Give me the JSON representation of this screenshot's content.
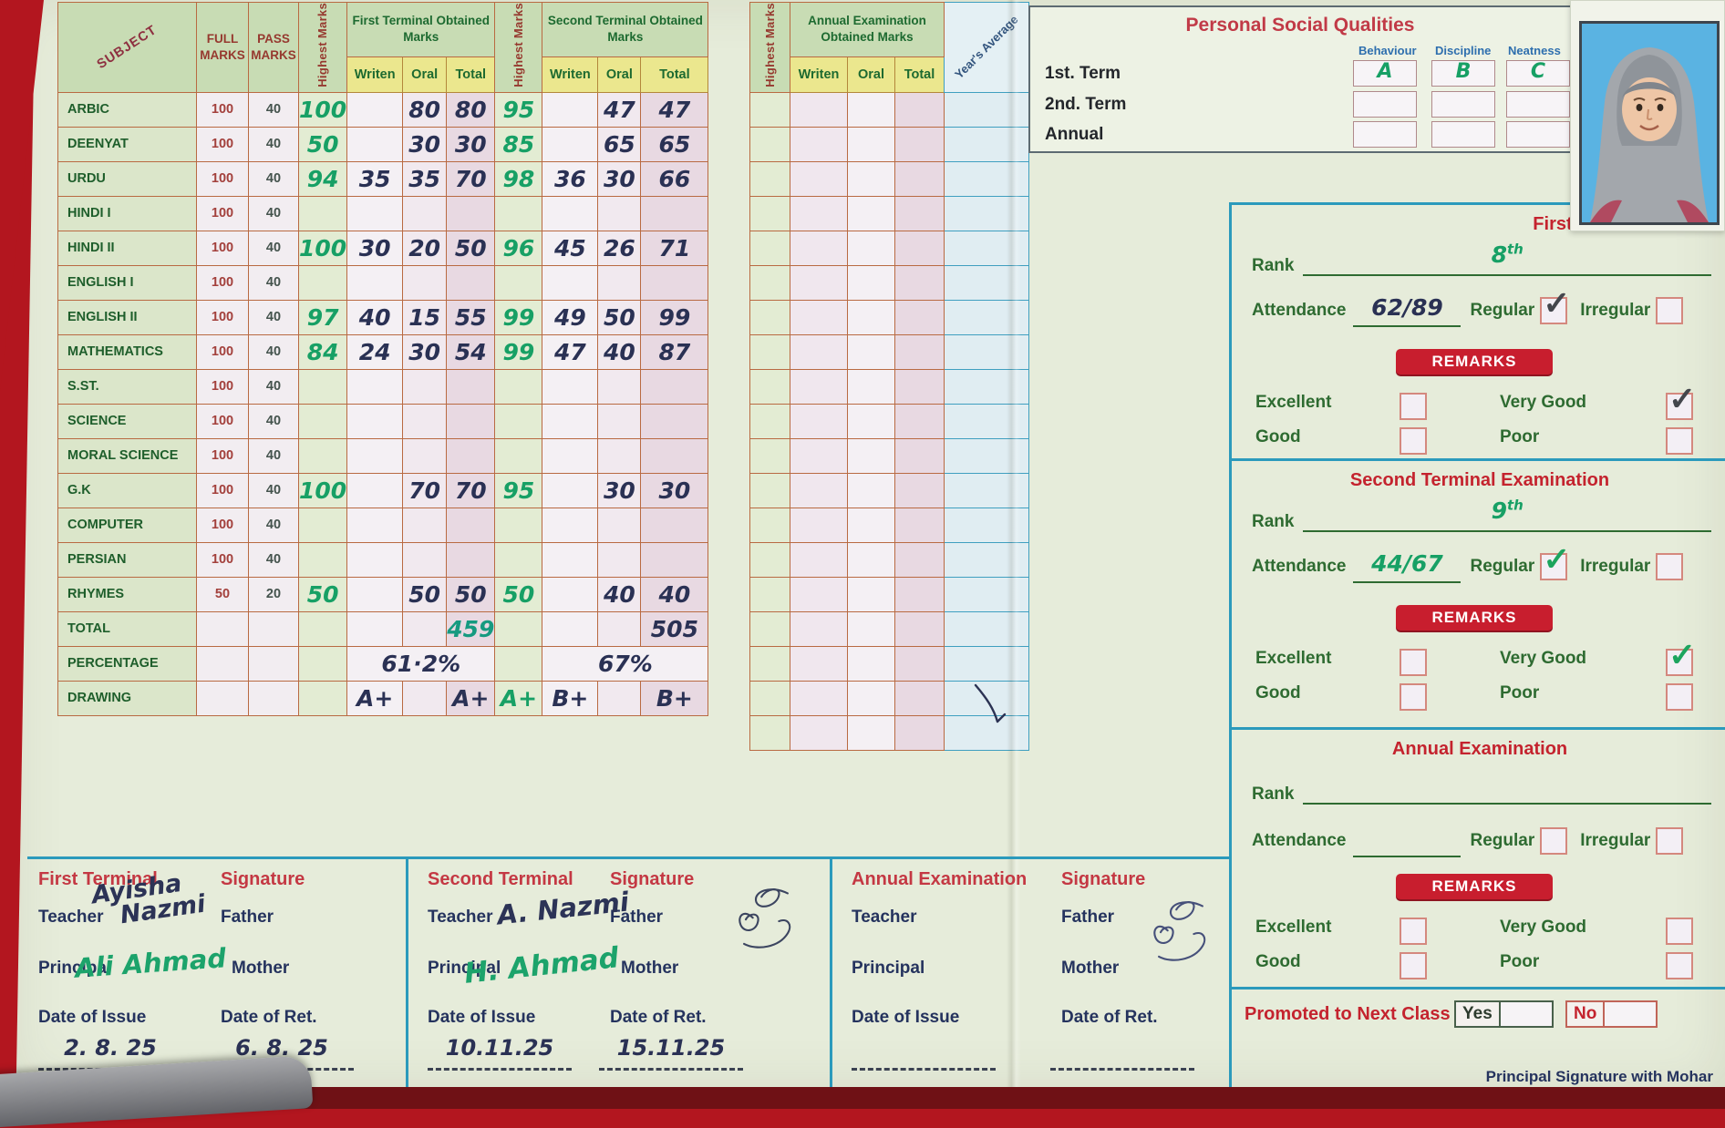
{
  "colors": {
    "card": "#e6ecda",
    "table_border": "#b96a42",
    "teal": "#2b9abc",
    "remarks_red": "#c81e2e",
    "ink_green": "#17a065",
    "ink_navy": "#2a3154",
    "header_green": "#c8dcb4",
    "yellow_cell": "#ebe78e"
  },
  "marks_table": {
    "corner": "SUBJECT",
    "full_header": "FULL MARKS",
    "pass_header": "PASS MARKS",
    "highest_header": "Highest Marks",
    "t1_group": "First Terminal Obtained Marks",
    "t2_group": "Second Terminal Obtained Marks",
    "written": "Writen",
    "oral": "Oral",
    "total": "Total",
    "rows": [
      {
        "subject": "ARBIC",
        "full": "100",
        "pass": "40",
        "t1": [
          "100",
          "",
          "80",
          "80"
        ],
        "t2": [
          "95",
          "",
          "47",
          "47"
        ]
      },
      {
        "subject": "DEENYAT",
        "full": "100",
        "pass": "40",
        "t1": [
          "50",
          "",
          "30",
          "30"
        ],
        "t2": [
          "85",
          "",
          "65",
          "65"
        ]
      },
      {
        "subject": "URDU",
        "full": "100",
        "pass": "40",
        "t1": [
          "94",
          "35",
          "35",
          "70"
        ],
        "t2": [
          "98",
          "36",
          "30",
          "66"
        ]
      },
      {
        "subject": "HINDI I",
        "full": "100",
        "pass": "40",
        "t1": [
          "",
          "",
          "",
          ""
        ],
        "t2": [
          "",
          "",
          "",
          ""
        ]
      },
      {
        "subject": "HINDI II",
        "full": "100",
        "pass": "40",
        "t1": [
          "100",
          "30",
          "20",
          "50"
        ],
        "t2": [
          "96",
          "45",
          "26",
          "71"
        ]
      },
      {
        "subject": "ENGLISH I",
        "full": "100",
        "pass": "40",
        "t1": [
          "",
          "",
          "",
          ""
        ],
        "t2": [
          "",
          "",
          "",
          ""
        ]
      },
      {
        "subject": "ENGLISH II",
        "full": "100",
        "pass": "40",
        "t1": [
          "97",
          "40",
          "15",
          "55"
        ],
        "t2": [
          "99",
          "49",
          "50",
          "99"
        ]
      },
      {
        "subject": "MATHEMATICS",
        "full": "100",
        "pass": "40",
        "t1": [
          "84",
          "24",
          "30",
          "54"
        ],
        "t2": [
          "99",
          "47",
          "40",
          "87"
        ]
      },
      {
        "subject": "S.ST.",
        "full": "100",
        "pass": "40",
        "t1": [
          "",
          "",
          "",
          ""
        ],
        "t2": [
          "",
          "",
          "",
          ""
        ]
      },
      {
        "subject": "SCIENCE",
        "full": "100",
        "pass": "40",
        "t1": [
          "",
          "",
          "",
          ""
        ],
        "t2": [
          "",
          "",
          "",
          ""
        ]
      },
      {
        "subject": "MORAL SCIENCE",
        "full": "100",
        "pass": "40",
        "t1": [
          "",
          "",
          "",
          ""
        ],
        "t2": [
          "",
          "",
          "",
          ""
        ]
      },
      {
        "subject": "G.K",
        "full": "100",
        "pass": "40",
        "t1": [
          "100",
          "",
          "70",
          "70"
        ],
        "t2": [
          "95",
          "",
          "30",
          "30"
        ]
      },
      {
        "subject": "COMPUTER",
        "full": "100",
        "pass": "40",
        "t1": [
          "",
          "",
          "",
          ""
        ],
        "t2": [
          "",
          "",
          "",
          ""
        ]
      },
      {
        "subject": "PERSIAN",
        "full": "100",
        "pass": "40",
        "t1": [
          "",
          "",
          "",
          ""
        ],
        "t2": [
          "",
          "",
          "",
          ""
        ]
      },
      {
        "subject": "RHYMES",
        "full": "50",
        "pass": "20",
        "t1": [
          "50",
          "",
          "50",
          "50"
        ],
        "t2": [
          "50",
          "",
          "40",
          "40"
        ]
      }
    ],
    "total_row": {
      "label": "TOTAL",
      "t1_total": "459",
      "t2_total": "505"
    },
    "percentage_row": {
      "label": "PERCENTAGE",
      "t1": "61·2%",
      "t2": "67%"
    },
    "drawing_row": {
      "label": "DRAWING",
      "t1_written": "A+",
      "t1_total": "A+",
      "t2_highest": "A+",
      "t2_written": "B+",
      "t2_total": "B+"
    }
  },
  "annual_table": {
    "highest_header": "Highest Marks",
    "group": "Annual Examination Obtained Marks",
    "written": "Writen",
    "oral": "Oral",
    "total": "Total",
    "years_average": "Year's Average",
    "blank_rows": 19
  },
  "psq": {
    "title": "Personal Social Qualities",
    "columns": [
      "Behaviour",
      "Discipline",
      "Neatness"
    ],
    "rows": [
      {
        "label": "1st. Term",
        "values": [
          "A",
          "B",
          "C"
        ]
      },
      {
        "label": "2nd. Term",
        "values": [
          "",
          "",
          ""
        ]
      },
      {
        "label": "Annual",
        "values": [
          "",
          "",
          ""
        ]
      }
    ]
  },
  "labels": {
    "rank": "Rank",
    "attendance": "Attendance",
    "regular": "Regular",
    "irregular": "Irregular",
    "remarks": "REMARKS",
    "excellent": "Excellent",
    "very_good": "Very Good",
    "good": "Good",
    "poor": "Poor"
  },
  "term_sections": [
    {
      "title": "First Terminal Exam",
      "rank": "8",
      "rank_sup": "th",
      "attendance": "62/89",
      "regular_checked": true,
      "irregular_checked": false,
      "excellent": false,
      "very_good": true,
      "good": false,
      "poor": false
    },
    {
      "title": "Second Terminal Examination",
      "rank": "9",
      "rank_sup": "th",
      "attendance": "44/67",
      "regular_checked": true,
      "irregular_checked": false,
      "excellent": false,
      "very_good": true,
      "good": false,
      "poor": false
    },
    {
      "title": "Annual Examination",
      "rank": "",
      "rank_sup": "",
      "attendance": "",
      "regular_checked": false,
      "irregular_checked": false,
      "excellent": false,
      "very_good": false,
      "good": false,
      "poor": false
    }
  ],
  "promotion": {
    "label": "Promoted to Next Class",
    "yes": "Yes",
    "no": "No",
    "footer": "Principal Signature with Mohar"
  },
  "sig_labels": {
    "signature": "Signature",
    "teacher": "Teacher",
    "father": "Father",
    "principal": "Principal",
    "mother": "Mother",
    "date_of_issue": "Date of Issue",
    "date_of_ret": "Date of Ret."
  },
  "sig_sections": [
    {
      "title": "First Terminal",
      "teacher_sig_line1": "Ayisha",
      "teacher_sig_line2": "Nazmi",
      "principal_sig": "Ali Ahmad",
      "date_of_issue": "2. 8. 25",
      "date_of_ret": "6. 8. 25"
    },
    {
      "title": "Second Terminal",
      "teacher_sig": "A. Nazmi",
      "principal_sig": "H. Ahmad",
      "date_of_issue": "10.11.25",
      "date_of_ret": "15.11.25"
    },
    {
      "title": "Annual Examination",
      "date_of_issue": "",
      "date_of_ret": ""
    }
  ]
}
